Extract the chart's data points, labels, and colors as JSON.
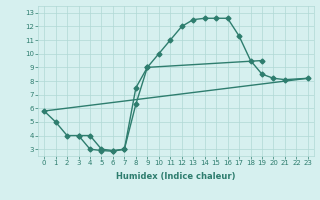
{
  "line1_x": [
    0,
    1,
    2,
    3,
    4,
    5,
    6,
    7,
    8,
    9,
    10,
    11,
    12,
    13,
    14,
    15,
    16,
    17,
    18,
    19,
    20,
    21,
    23
  ],
  "line1_y": [
    5.8,
    5.0,
    4.0,
    4.0,
    3.0,
    2.9,
    2.85,
    3.0,
    7.5,
    9.0,
    10.0,
    11.0,
    12.0,
    12.5,
    12.6,
    12.6,
    12.6,
    11.3,
    9.5,
    8.5,
    8.2,
    8.1,
    8.2
  ],
  "line2_x": [
    0,
    23
  ],
  "line2_y": [
    5.8,
    8.2
  ],
  "line3_x": [
    3,
    4,
    5,
    6,
    7,
    8,
    9,
    19
  ],
  "line3_y": [
    4.0,
    4.0,
    3.0,
    2.9,
    3.0,
    6.3,
    9.0,
    9.5
  ],
  "color": "#2e7d6e",
  "bg_color": "#d6f0ef",
  "grid_color": "#b0d8d5",
  "xlabel": "Humidex (Indice chaleur)",
  "xlim": [
    -0.5,
    23.5
  ],
  "ylim": [
    2.5,
    13.5
  ],
  "yticks": [
    3,
    4,
    5,
    6,
    7,
    8,
    9,
    10,
    11,
    12,
    13
  ],
  "xticks": [
    0,
    1,
    2,
    3,
    4,
    5,
    6,
    7,
    8,
    9,
    10,
    11,
    12,
    13,
    14,
    15,
    16,
    17,
    18,
    19,
    20,
    21,
    22,
    23
  ],
  "xtick_labels": [
    "0",
    "1",
    "2",
    "3",
    "4",
    "5",
    "6",
    "7",
    "8",
    "9",
    "10",
    "11",
    "12",
    "13",
    "14",
    "15",
    "16",
    "17",
    "18",
    "19",
    "20",
    "21",
    "22",
    "23"
  ],
  "marker": "D",
  "markersize": 2.5,
  "linewidth": 1.0,
  "tick_fontsize": 5,
  "xlabel_fontsize": 6
}
